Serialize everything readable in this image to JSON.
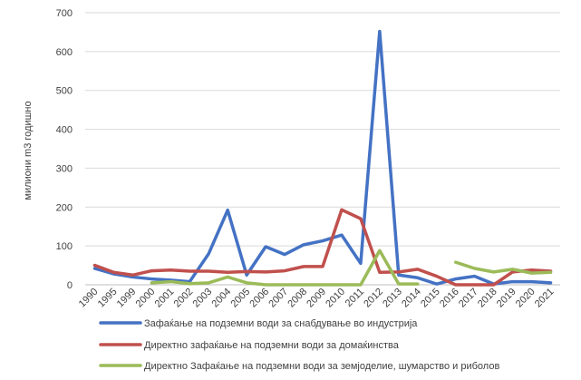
{
  "chart_data": {
    "type": "line",
    "ylabel": "милиони m3 годишно",
    "ylim": [
      0,
      700
    ],
    "yticks": [
      0,
      100,
      200,
      300,
      400,
      500,
      600,
      700
    ],
    "grid": "horizontal",
    "legend_position": "bottom",
    "categories": [
      "1990",
      "1995",
      "1999",
      "2000",
      "2001",
      "2002",
      "2003",
      "2004",
      "2005",
      "2006",
      "2007",
      "2008",
      "2009",
      "2010",
      "2011",
      "2012",
      "2013",
      "2014",
      "2015",
      "2016",
      "2017",
      "2018",
      "2019",
      "2020",
      "2021"
    ],
    "series": [
      {
        "name": "Зафаќање на подземни води за снабдување во индустрија",
        "color": "#4472C4",
        "values": [
          42,
          28,
          20,
          15,
          12,
          8,
          80,
          192,
          25,
          98,
          78,
          103,
          113,
          128,
          55,
          652,
          25,
          18,
          2,
          15,
          22,
          2,
          8,
          8,
          5
        ]
      },
      {
        "name": "Директно зафаќање на подземни води за домаќинства",
        "color": "#C0504D",
        "values": [
          50,
          32,
          25,
          36,
          38,
          35,
          35,
          32,
          34,
          33,
          36,
          47,
          47,
          193,
          170,
          32,
          33,
          40,
          22,
          0,
          0,
          0,
          33,
          38,
          35
        ]
      },
      {
        "name": "Директно Зафаќање на подземни води за земјоделие, шумарство и риболов",
        "color": "#9BBB59",
        "values": [
          null,
          null,
          null,
          5,
          8,
          3,
          5,
          20,
          5,
          0,
          0,
          0,
          0,
          0,
          0,
          88,
          2,
          2,
          null,
          58,
          42,
          33,
          40,
          30,
          32
        ]
      }
    ]
  }
}
